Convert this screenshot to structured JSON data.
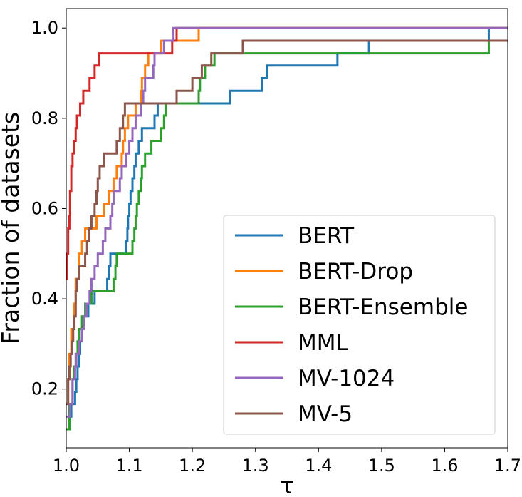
{
  "chart_data": {
    "type": "line",
    "xlabel": "τ",
    "ylabel": "Fraction of datasets",
    "xlim": [
      1.0,
      1.7
    ],
    "ylim": [
      0.07,
      1.043
    ],
    "xticks": [
      {
        "value": 1.0,
        "label": "1.0"
      },
      {
        "value": 1.1,
        "label": "1.1"
      },
      {
        "value": 1.2,
        "label": "1.2"
      },
      {
        "value": 1.3,
        "label": "1.3"
      },
      {
        "value": 1.4,
        "label": "1.4"
      },
      {
        "value": 1.5,
        "label": "1.5"
      },
      {
        "value": 1.6,
        "label": "1.6"
      },
      {
        "value": 1.7,
        "label": "1.7"
      }
    ],
    "yticks": [
      {
        "value": 0.2,
        "label": "0.2"
      },
      {
        "value": 0.4,
        "label": "0.4"
      },
      {
        "value": 0.6,
        "label": "0.6"
      },
      {
        "value": 0.8,
        "label": "0.8"
      },
      {
        "value": 1.0,
        "label": "1.0"
      }
    ],
    "grid": false,
    "legend_position": "lower-right",
    "step": "post",
    "series": [
      {
        "name": "BERT",
        "color": "#1f77b4",
        "points": [
          [
            1.0,
            0.111
          ],
          [
            1.006,
            0.139
          ],
          [
            1.008,
            0.167
          ],
          [
            1.014,
            0.194
          ],
          [
            1.016,
            0.222
          ],
          [
            1.018,
            0.25
          ],
          [
            1.02,
            0.278
          ],
          [
            1.022,
            0.306
          ],
          [
            1.025,
            0.333
          ],
          [
            1.028,
            0.361
          ],
          [
            1.035,
            0.389
          ],
          [
            1.045,
            0.417
          ],
          [
            1.065,
            0.444
          ],
          [
            1.068,
            0.472
          ],
          [
            1.07,
            0.5
          ],
          [
            1.095,
            0.528
          ],
          [
            1.097,
            0.556
          ],
          [
            1.098,
            0.583
          ],
          [
            1.1,
            0.611
          ],
          [
            1.102,
            0.639
          ],
          [
            1.105,
            0.667
          ],
          [
            1.108,
            0.694
          ],
          [
            1.11,
            0.722
          ],
          [
            1.115,
            0.75
          ],
          [
            1.12,
            0.778
          ],
          [
            1.14,
            0.806
          ],
          [
            1.145,
            0.833
          ],
          [
            1.26,
            0.861
          ],
          [
            1.31,
            0.889
          ],
          [
            1.318,
            0.917
          ],
          [
            1.43,
            0.944
          ],
          [
            1.48,
            0.972
          ],
          [
            1.67,
            1.0
          ],
          [
            1.7,
            1.0
          ]
        ]
      },
      {
        "name": "BERT-Drop",
        "color": "#ff7f0e",
        "points": [
          [
            1.0,
            0.167
          ],
          [
            1.003,
            0.222
          ],
          [
            1.005,
            0.278
          ],
          [
            1.008,
            0.333
          ],
          [
            1.012,
            0.389
          ],
          [
            1.015,
            0.444
          ],
          [
            1.02,
            0.5
          ],
          [
            1.025,
            0.528
          ],
          [
            1.03,
            0.556
          ],
          [
            1.048,
            0.583
          ],
          [
            1.06,
            0.611
          ],
          [
            1.068,
            0.639
          ],
          [
            1.075,
            0.667
          ],
          [
            1.08,
            0.694
          ],
          [
            1.088,
            0.722
          ],
          [
            1.09,
            0.75
          ],
          [
            1.093,
            0.778
          ],
          [
            1.098,
            0.806
          ],
          [
            1.11,
            0.833
          ],
          [
            1.118,
            0.861
          ],
          [
            1.12,
            0.889
          ],
          [
            1.125,
            0.917
          ],
          [
            1.13,
            0.944
          ],
          [
            1.15,
            0.972
          ],
          [
            1.21,
            1.0
          ],
          [
            1.7,
            1.0
          ]
        ]
      },
      {
        "name": "BERT-Ensemble",
        "color": "#2ca02c",
        "points": [
          [
            1.0,
            0.111
          ],
          [
            1.005,
            0.167
          ],
          [
            1.01,
            0.222
          ],
          [
            1.012,
            0.25
          ],
          [
            1.015,
            0.278
          ],
          [
            1.018,
            0.306
          ],
          [
            1.02,
            0.333
          ],
          [
            1.025,
            0.361
          ],
          [
            1.03,
            0.389
          ],
          [
            1.04,
            0.417
          ],
          [
            1.075,
            0.444
          ],
          [
            1.078,
            0.472
          ],
          [
            1.08,
            0.5
          ],
          [
            1.105,
            0.528
          ],
          [
            1.108,
            0.556
          ],
          [
            1.11,
            0.583
          ],
          [
            1.112,
            0.611
          ],
          [
            1.115,
            0.639
          ],
          [
            1.118,
            0.667
          ],
          [
            1.12,
            0.694
          ],
          [
            1.125,
            0.722
          ],
          [
            1.135,
            0.75
          ],
          [
            1.15,
            0.778
          ],
          [
            1.155,
            0.806
          ],
          [
            1.158,
            0.833
          ],
          [
            1.21,
            0.861
          ],
          [
            1.212,
            0.889
          ],
          [
            1.22,
            0.917
          ],
          [
            1.235,
            0.944
          ],
          [
            1.67,
            0.972
          ],
          [
            1.7,
            0.972
          ]
        ]
      },
      {
        "name": "MML",
        "color": "#d62728",
        "points": [
          [
            1.0,
            0.444
          ],
          [
            1.001,
            0.5
          ],
          [
            1.003,
            0.556
          ],
          [
            1.005,
            0.583
          ],
          [
            1.006,
            0.639
          ],
          [
            1.008,
            0.694
          ],
          [
            1.01,
            0.722
          ],
          [
            1.012,
            0.75
          ],
          [
            1.015,
            0.778
          ],
          [
            1.017,
            0.806
          ],
          [
            1.022,
            0.833
          ],
          [
            1.027,
            0.861
          ],
          [
            1.037,
            0.889
          ],
          [
            1.045,
            0.917
          ],
          [
            1.052,
            0.944
          ],
          [
            1.168,
            0.972
          ],
          [
            1.175,
            1.0
          ],
          [
            1.7,
            1.0
          ]
        ]
      },
      {
        "name": "MV-1024",
        "color": "#9467bd",
        "points": [
          [
            1.0,
            0.139
          ],
          [
            1.006,
            0.167
          ],
          [
            1.01,
            0.222
          ],
          [
            1.014,
            0.25
          ],
          [
            1.016,
            0.278
          ],
          [
            1.02,
            0.306
          ],
          [
            1.025,
            0.333
          ],
          [
            1.028,
            0.361
          ],
          [
            1.032,
            0.389
          ],
          [
            1.037,
            0.417
          ],
          [
            1.04,
            0.444
          ],
          [
            1.045,
            0.472
          ],
          [
            1.05,
            0.5
          ],
          [
            1.058,
            0.528
          ],
          [
            1.062,
            0.556
          ],
          [
            1.07,
            0.583
          ],
          [
            1.073,
            0.611
          ],
          [
            1.075,
            0.639
          ],
          [
            1.085,
            0.667
          ],
          [
            1.088,
            0.694
          ],
          [
            1.095,
            0.722
          ],
          [
            1.1,
            0.75
          ],
          [
            1.105,
            0.778
          ],
          [
            1.11,
            0.806
          ],
          [
            1.118,
            0.833
          ],
          [
            1.122,
            0.861
          ],
          [
            1.125,
            0.889
          ],
          [
            1.138,
            0.917
          ],
          [
            1.14,
            0.944
          ],
          [
            1.155,
            0.972
          ],
          [
            1.17,
            1.0
          ],
          [
            1.7,
            1.0
          ]
        ]
      },
      {
        "name": "MV-5",
        "color": "#8c564b",
        "points": [
          [
            1.0,
            0.167
          ],
          [
            1.003,
            0.222
          ],
          [
            1.005,
            0.25
          ],
          [
            1.007,
            0.278
          ],
          [
            1.009,
            0.306
          ],
          [
            1.011,
            0.333
          ],
          [
            1.013,
            0.361
          ],
          [
            1.015,
            0.417
          ],
          [
            1.017,
            0.444
          ],
          [
            1.02,
            0.472
          ],
          [
            1.03,
            0.5
          ],
          [
            1.033,
            0.528
          ],
          [
            1.036,
            0.556
          ],
          [
            1.04,
            0.583
          ],
          [
            1.045,
            0.611
          ],
          [
            1.048,
            0.639
          ],
          [
            1.05,
            0.667
          ],
          [
            1.053,
            0.694
          ],
          [
            1.06,
            0.722
          ],
          [
            1.08,
            0.75
          ],
          [
            1.085,
            0.778
          ],
          [
            1.09,
            0.806
          ],
          [
            1.093,
            0.833
          ],
          [
            1.175,
            0.861
          ],
          [
            1.2,
            0.889
          ],
          [
            1.215,
            0.917
          ],
          [
            1.23,
            0.944
          ],
          [
            1.28,
            0.972
          ],
          [
            1.7,
            0.972
          ]
        ]
      }
    ]
  }
}
